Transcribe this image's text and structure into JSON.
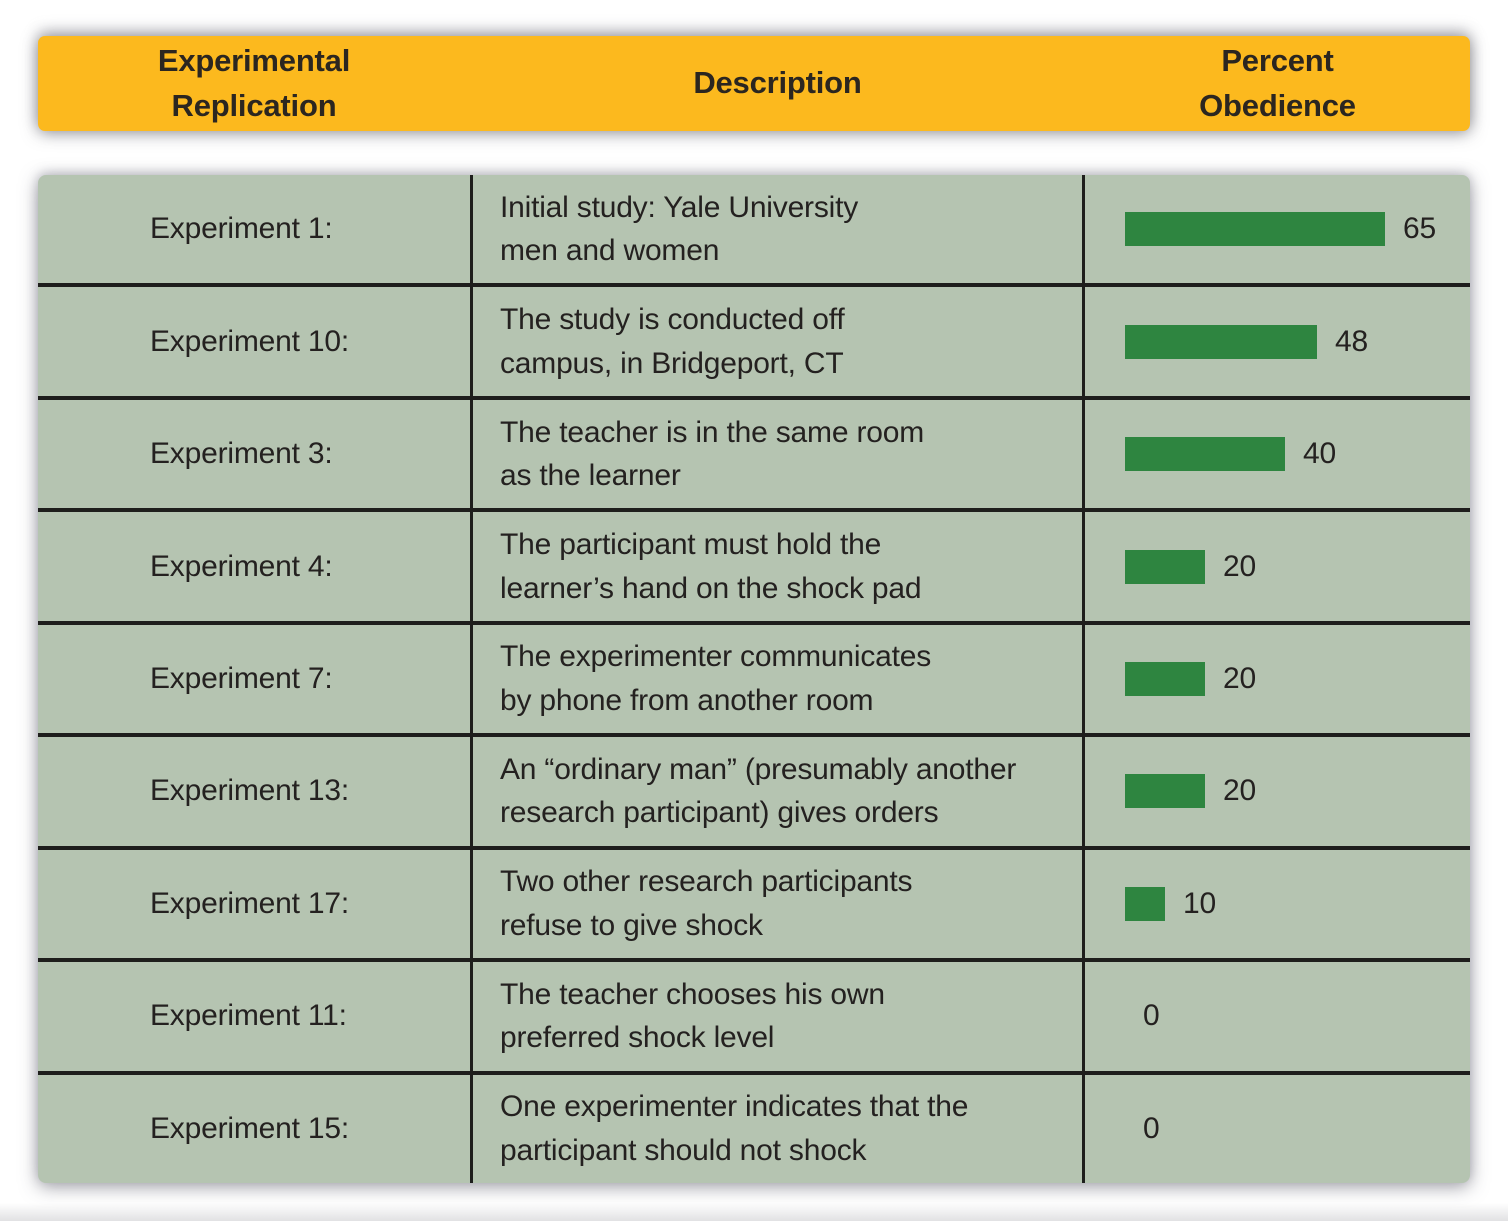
{
  "figure": {
    "header": {
      "col_replication": "Experimental\nReplication",
      "col_description": "Description",
      "col_percent": "Percent\nObedience"
    },
    "rows": [
      {
        "label": "Experiment 1:",
        "description": "Initial study: Yale University\nmen and women",
        "value": 65
      },
      {
        "label": "Experiment 10:",
        "description": "The study is conducted off\ncampus, in Bridgeport, CT",
        "value": 48
      },
      {
        "label": "Experiment 3:",
        "description": "The teacher is in the same room\nas the learner",
        "value": 40
      },
      {
        "label": "Experiment 4:",
        "description": "The participant must hold the\nlearner’s hand on the shock pad",
        "value": 20
      },
      {
        "label": "Experiment 7:",
        "description": "The experimenter communicates\nby phone from another room",
        "value": 20
      },
      {
        "label": "Experiment 13:",
        "description": "An “ordinary man” (presumably another\nresearch participant) gives orders",
        "value": 20
      },
      {
        "label": "Experiment 17:",
        "description": "Two other research participants\nrefuse to give shock",
        "value": 10
      },
      {
        "label": "Experiment 11:",
        "description": "The teacher chooses his own\npreferred shock level",
        "value": 0
      },
      {
        "label": "Experiment 15:",
        "description": "One experimenter indicates that the\nparticipant should not shock",
        "value": 0
      }
    ],
    "colors": {
      "header_background": "#fcb91e",
      "header_text": "#2b2620",
      "table_background": "#b5c4b1",
      "bar_green": "#2e8540",
      "grid_lines": "#1e1e1c",
      "body_text": "#242120",
      "page_background": "#ffffff"
    }
  },
  "chart_data": {
    "type": "bar",
    "orientation": "horizontal",
    "title": "",
    "xlabel": "Percent Obedience",
    "ylabel": "Experimental Replication",
    "categories": [
      "Experiment 1:",
      "Experiment 10:",
      "Experiment 3:",
      "Experiment 4:",
      "Experiment 7:",
      "Experiment 13:",
      "Experiment 17:",
      "Experiment 11:",
      "Experiment 15:"
    ],
    "category_descriptions": [
      "Initial study: Yale University men and women",
      "The study is conducted off campus, in Bridgeport, CT",
      "The teacher is in the same room as the learner",
      "The participant must hold the learner’s hand on the shock pad",
      "The experimenter communicates by phone from another room",
      "An “ordinary man” (presumably another research participant) gives orders",
      "Two other research participants refuse to give shock",
      "The teacher chooses his own preferred shock level",
      "One experimenter indicates that the participant should not shock"
    ],
    "values": [
      65,
      48,
      40,
      20,
      20,
      20,
      10,
      0,
      0
    ],
    "data_labels_shown": true,
    "axis_shown": false,
    "grid": false,
    "legend": "none",
    "bar_color": "#2e8540"
  }
}
